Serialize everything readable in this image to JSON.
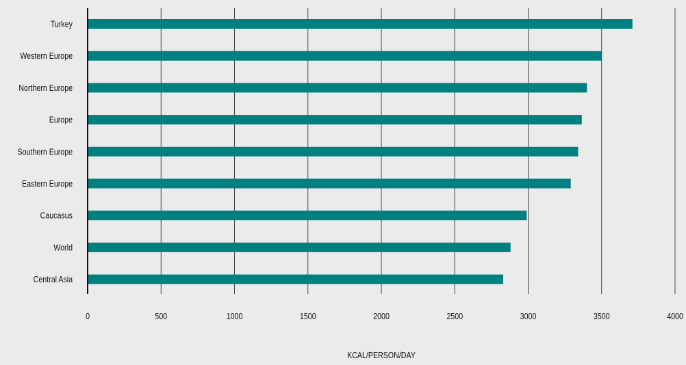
{
  "chart_data": {
    "type": "bar",
    "orientation": "horizontal",
    "categories": [
      "Turkey",
      "Western Europe",
      "Northern Europe",
      "Europe",
      "Southern Europe",
      "Eastern Europe",
      "Caucasus",
      "World",
      "Central Asia"
    ],
    "values": [
      3710,
      3500,
      3400,
      3365,
      3340,
      3290,
      2990,
      2880,
      2830
    ],
    "xlabel": "KCAL/PERSON/DAY",
    "ylabel": "",
    "xlim": [
      0,
      4000
    ],
    "xticks": [
      0,
      500,
      1000,
      1500,
      2000,
      2500,
      3000,
      3500,
      4000
    ],
    "grid": true,
    "bar_color": "#008080"
  }
}
